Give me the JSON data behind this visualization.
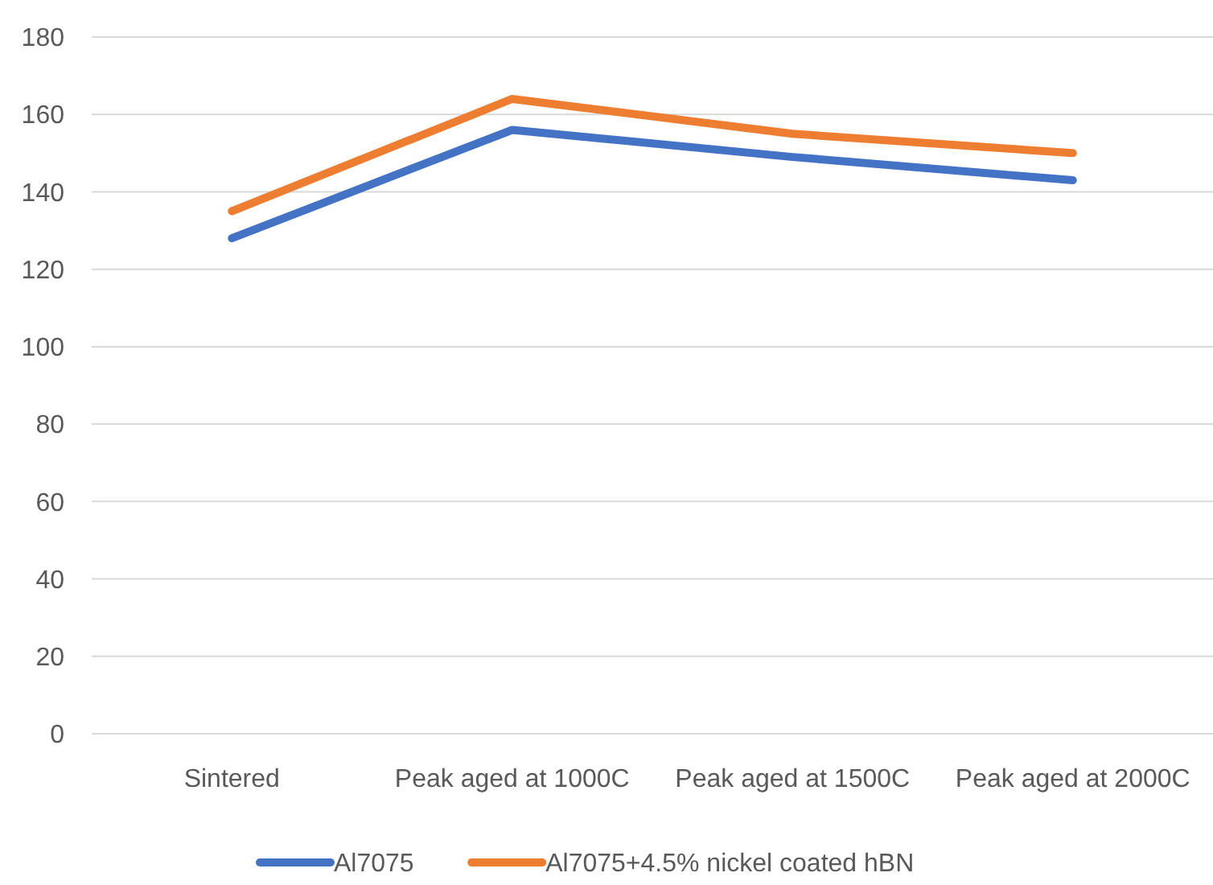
{
  "chart_data": {
    "type": "line",
    "categories": [
      "Sintered",
      "Peak aged at 1000C",
      "Peak aged at 1500C",
      "Peak aged at 2000C"
    ],
    "series": [
      {
        "name": "Al7075",
        "color": "#4472c4",
        "values": [
          128,
          156,
          149,
          143
        ]
      },
      {
        "name": "Al7075+4.5% nickel coated hBN",
        "color": "#ed7d31",
        "values": [
          135,
          164,
          155,
          150
        ]
      }
    ],
    "ylim": [
      0,
      180
    ],
    "yticks": [
      0,
      20,
      40,
      60,
      80,
      100,
      120,
      140,
      160,
      180
    ],
    "grid": "y",
    "legend": "bottom",
    "marker": "none",
    "line_style": "solid"
  }
}
